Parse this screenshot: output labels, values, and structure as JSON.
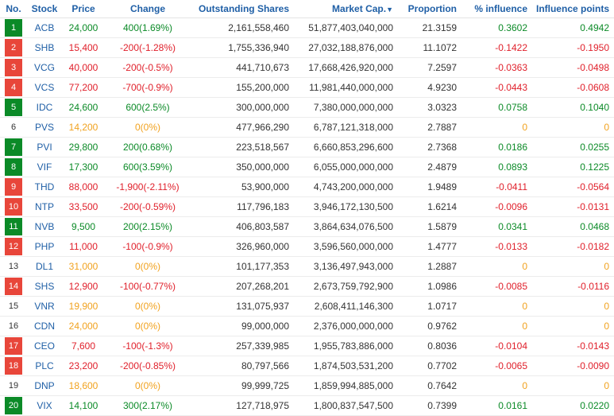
{
  "header": {
    "no": "No.",
    "stock": "Stock",
    "price": "Price",
    "change": "Change",
    "shares": "Outstanding Shares",
    "mcap": "Market Cap.",
    "mcap_arrow": "▼",
    "proportion": "Proportion",
    "pct_influence": "% influence",
    "influence_points": "Influence points"
  },
  "colors": {
    "up": "#0b8a27",
    "down": "#e0202b",
    "flat": "#f1a21f",
    "header": "#1f5fa6"
  },
  "rows": [
    {
      "no": "1",
      "stock": "ACB",
      "price": "24,000",
      "change": "400(1.69%)",
      "shares": "2,161,558,460",
      "mcap": "51,877,403,040,000",
      "proportion": "21.3159",
      "pct": "0.3602",
      "points": "0.4942",
      "dir": "up"
    },
    {
      "no": "2",
      "stock": "SHB",
      "price": "15,400",
      "change": "-200(-1.28%)",
      "shares": "1,755,336,940",
      "mcap": "27,032,188,876,000",
      "proportion": "11.1072",
      "pct": "-0.1422",
      "points": "-0.1950",
      "dir": "down"
    },
    {
      "no": "3",
      "stock": "VCG",
      "price": "40,000",
      "change": "-200(-0.5%)",
      "shares": "441,710,673",
      "mcap": "17,668,426,920,000",
      "proportion": "7.2597",
      "pct": "-0.0363",
      "points": "-0.0498",
      "dir": "down"
    },
    {
      "no": "4",
      "stock": "VCS",
      "price": "77,200",
      "change": "-700(-0.9%)",
      "shares": "155,200,000",
      "mcap": "11,981,440,000,000",
      "proportion": "4.9230",
      "pct": "-0.0443",
      "points": "-0.0608",
      "dir": "down"
    },
    {
      "no": "5",
      "stock": "IDC",
      "price": "24,600",
      "change": "600(2.5%)",
      "shares": "300,000,000",
      "mcap": "7,380,000,000,000",
      "proportion": "3.0323",
      "pct": "0.0758",
      "points": "0.1040",
      "dir": "up"
    },
    {
      "no": "6",
      "stock": "PVS",
      "price": "14,200",
      "change": "0(0%)",
      "shares": "477,966,290",
      "mcap": "6,787,121,318,000",
      "proportion": "2.7887",
      "pct": "0",
      "points": "0",
      "dir": "flat"
    },
    {
      "no": "7",
      "stock": "PVI",
      "price": "29,800",
      "change": "200(0.68%)",
      "shares": "223,518,567",
      "mcap": "6,660,853,296,600",
      "proportion": "2.7368",
      "pct": "0.0186",
      "points": "0.0255",
      "dir": "up"
    },
    {
      "no": "8",
      "stock": "VIF",
      "price": "17,300",
      "change": "600(3.59%)",
      "shares": "350,000,000",
      "mcap": "6,055,000,000,000",
      "proportion": "2.4879",
      "pct": "0.0893",
      "points": "0.1225",
      "dir": "up"
    },
    {
      "no": "9",
      "stock": "THD",
      "price": "88,000",
      "change": "-1,900(-2.11%)",
      "shares": "53,900,000",
      "mcap": "4,743,200,000,000",
      "proportion": "1.9489",
      "pct": "-0.0411",
      "points": "-0.0564",
      "dir": "down"
    },
    {
      "no": "10",
      "stock": "NTP",
      "price": "33,500",
      "change": "-200(-0.59%)",
      "shares": "117,796,183",
      "mcap": "3,946,172,130,500",
      "proportion": "1.6214",
      "pct": "-0.0096",
      "points": "-0.0131",
      "dir": "down"
    },
    {
      "no": "11",
      "stock": "NVB",
      "price": "9,500",
      "change": "200(2.15%)",
      "shares": "406,803,587",
      "mcap": "3,864,634,076,500",
      "proportion": "1.5879",
      "pct": "0.0341",
      "points": "0.0468",
      "dir": "up"
    },
    {
      "no": "12",
      "stock": "PHP",
      "price": "11,000",
      "change": "-100(-0.9%)",
      "shares": "326,960,000",
      "mcap": "3,596,560,000,000",
      "proportion": "1.4777",
      "pct": "-0.0133",
      "points": "-0.0182",
      "dir": "down"
    },
    {
      "no": "13",
      "stock": "DL1",
      "price": "31,000",
      "change": "0(0%)",
      "shares": "101,177,353",
      "mcap": "3,136,497,943,000",
      "proportion": "1.2887",
      "pct": "0",
      "points": "0",
      "dir": "flat"
    },
    {
      "no": "14",
      "stock": "SHS",
      "price": "12,900",
      "change": "-100(-0.77%)",
      "shares": "207,268,201",
      "mcap": "2,673,759,792,900",
      "proportion": "1.0986",
      "pct": "-0.0085",
      "points": "-0.0116",
      "dir": "down"
    },
    {
      "no": "15",
      "stock": "VNR",
      "price": "19,900",
      "change": "0(0%)",
      "shares": "131,075,937",
      "mcap": "2,608,411,146,300",
      "proportion": "1.0717",
      "pct": "0",
      "points": "0",
      "dir": "flat"
    },
    {
      "no": "16",
      "stock": "CDN",
      "price": "24,000",
      "change": "0(0%)",
      "shares": "99,000,000",
      "mcap": "2,376,000,000,000",
      "proportion": "0.9762",
      "pct": "0",
      "points": "0",
      "dir": "flat"
    },
    {
      "no": "17",
      "stock": "CEO",
      "price": "7,600",
      "change": "-100(-1.3%)",
      "shares": "257,339,985",
      "mcap": "1,955,783,886,000",
      "proportion": "0.8036",
      "pct": "-0.0104",
      "points": "-0.0143",
      "dir": "down"
    },
    {
      "no": "18",
      "stock": "PLC",
      "price": "23,200",
      "change": "-200(-0.85%)",
      "shares": "80,797,566",
      "mcap": "1,874,503,531,200",
      "proportion": "0.7702",
      "pct": "-0.0065",
      "points": "-0.0090",
      "dir": "down"
    },
    {
      "no": "19",
      "stock": "DNP",
      "price": "18,600",
      "change": "0(0%)",
      "shares": "99,999,725",
      "mcap": "1,859,994,885,000",
      "proportion": "0.7642",
      "pct": "0",
      "points": "0",
      "dir": "flat"
    },
    {
      "no": "20",
      "stock": "VIX",
      "price": "14,100",
      "change": "300(2.17%)",
      "shares": "127,718,975",
      "mcap": "1,800,837,547,500",
      "proportion": "0.7399",
      "pct": "0.0161",
      "points": "0.0220",
      "dir": "up"
    }
  ]
}
